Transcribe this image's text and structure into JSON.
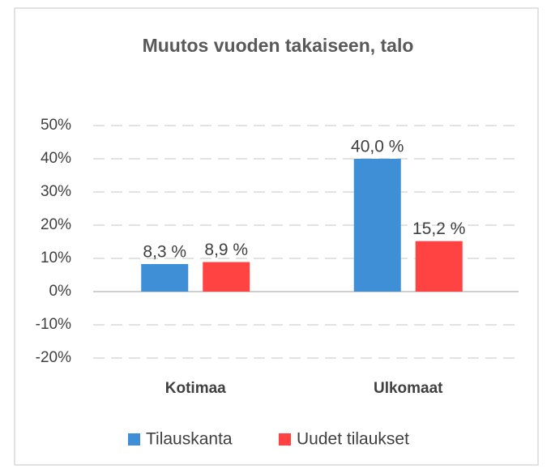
{
  "chart_data": {
    "type": "bar",
    "title": "Muutos vuoden takaiseen, talo",
    "categories": [
      "Kotimaa",
      "Ulkomaat"
    ],
    "series": [
      {
        "name": "Tilauskanta",
        "color": "#3f8fd6",
        "values": [
          8.3,
          40.0
        ],
        "value_labels": [
          "8,3 %",
          "40,0 %"
        ]
      },
      {
        "name": "Uudet tilaukset",
        "color": "#ff4242",
        "values": [
          8.9,
          15.2
        ],
        "value_labels": [
          "8,9 %",
          "15,2 %"
        ]
      }
    ],
    "ylim": [
      -20,
      50
    ],
    "yticks": [
      {
        "value": -20,
        "label": "-20%"
      },
      {
        "value": -10,
        "label": "-10%"
      },
      {
        "value": 0,
        "label": "0%"
      },
      {
        "value": 10,
        "label": "10%"
      },
      {
        "value": 20,
        "label": "20%"
      },
      {
        "value": 30,
        "label": "30%"
      },
      {
        "value": 40,
        "label": "40%"
      },
      {
        "value": 50,
        "label": "50%"
      }
    ],
    "grid": true,
    "legend": "bottom"
  }
}
